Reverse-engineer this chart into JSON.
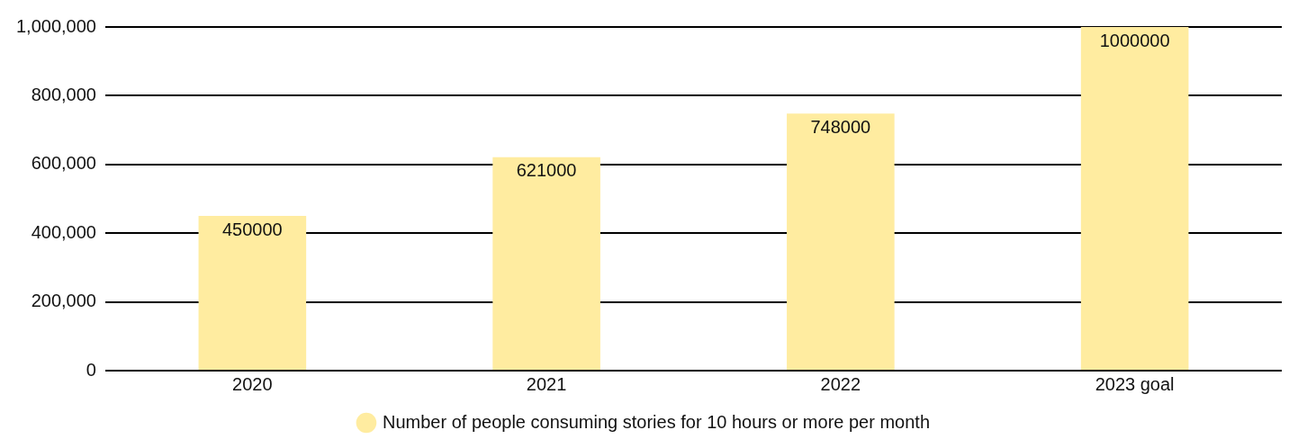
{
  "chart_data": {
    "type": "bar",
    "categories": [
      "2020",
      "2021",
      "2022",
      "2023 goal"
    ],
    "series": [
      {
        "name": "Number of people consuming stories for 10 hours or more per month",
        "color": "#ffeca0",
        "values": [
          450000,
          621000,
          748000,
          1000000
        ]
      }
    ],
    "ylim": [
      0,
      1000000
    ],
    "yticks": [
      {
        "value": 0,
        "label": "0"
      },
      {
        "value": 200000,
        "label": "200,000"
      },
      {
        "value": 400000,
        "label": "400,000"
      },
      {
        "value": 600000,
        "label": "600,000"
      },
      {
        "value": 800000,
        "label": "800,000"
      },
      {
        "value": 1000000,
        "label": "1,000,000"
      }
    ],
    "grid": "y",
    "legend": "bottom",
    "data_labels": true
  }
}
